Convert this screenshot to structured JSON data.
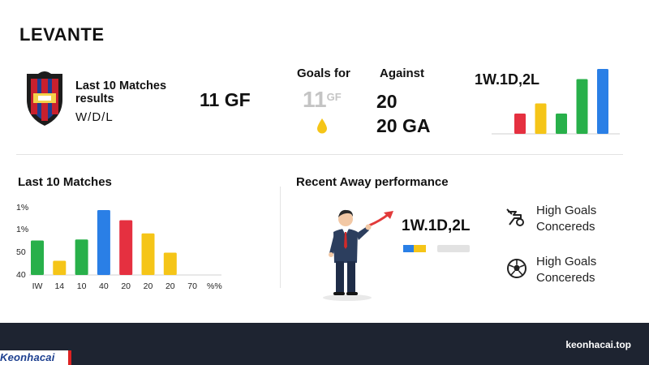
{
  "team": {
    "name": "LEVANTE"
  },
  "summary": {
    "last10_label": "Last 10 Matches results",
    "wdl_label": "W/D/L",
    "gf_value": "11 GF"
  },
  "goals": {
    "for_label": "Goals for",
    "against_label": "Against",
    "gf_ghost_num": "11",
    "gf_ghost_unit": "GF",
    "against_value": "20",
    "against_ga": "20 GA"
  },
  "record_top": "1W.1D,2L",
  "top_bars": {
    "values": [
      1,
      1.5,
      1,
      2.7,
      3.2
    ],
    "colors": [
      "#e53040",
      "#f5c518",
      "#28b04a",
      "#28b04a",
      "#2a7fe6"
    ]
  },
  "last10": {
    "title": "Last 10 Matches",
    "chart_data": {
      "type": "bar",
      "y_tick_labels": [
        "1%",
        "1%",
        "50",
        "40"
      ],
      "x_tick_labels": [
        "IW",
        "14",
        "10",
        "40",
        "20",
        "20",
        "20",
        "70",
        "%%"
      ],
      "values": [
        3.4,
        1.4,
        3.5,
        6.4,
        5.4,
        4.1,
        2.2,
        0,
        0
      ],
      "colors": [
        "#28b04a",
        "#f5c518",
        "#28b04a",
        "#2a7fe6",
        "#e53040",
        "#f5c518",
        "#f5c518",
        "#f5c518",
        "#f5c518"
      ],
      "grid": false
    }
  },
  "away": {
    "title": "Recent Away performance",
    "record": "1W.1D,2L",
    "stats": [
      {
        "line1": "High Goals",
        "line2": "Concereds",
        "icon": "whistle-icon"
      },
      {
        "line1": "High Goals",
        "line2": "Concereds",
        "icon": "soccer-ball-icon"
      }
    ]
  },
  "footer": {
    "url": "keonhacai.top",
    "brand": "Keonhacai"
  }
}
